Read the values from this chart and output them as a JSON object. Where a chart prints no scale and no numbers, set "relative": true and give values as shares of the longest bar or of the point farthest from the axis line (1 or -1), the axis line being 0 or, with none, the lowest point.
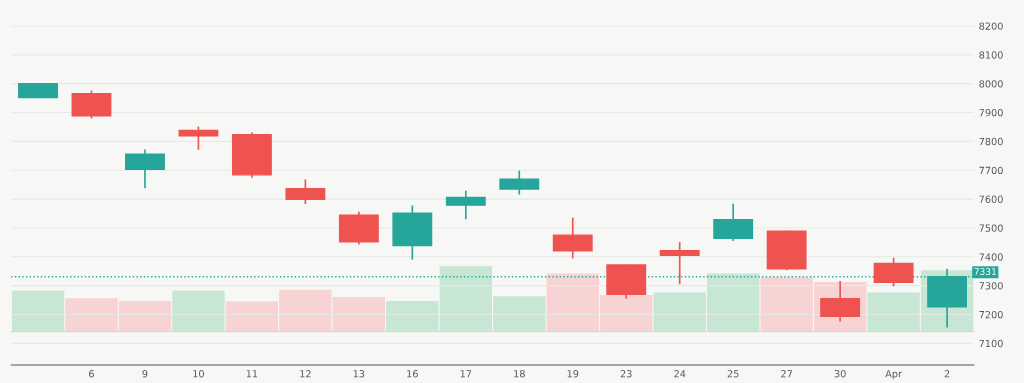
{
  "chart_data": [
    {
      "type": "candlestick",
      "categories": [
        null,
        "6",
        "9",
        "10",
        "11",
        "12",
        "13",
        "16",
        "17",
        "18",
        "19",
        "23",
        "24",
        "25",
        "27",
        "30",
        "Apr",
        "2"
      ],
      "ohlc": [
        [
          7952,
          8000,
          7952,
          8000
        ],
        [
          7965,
          7976,
          7879,
          7889
        ],
        [
          7703,
          7772,
          7638,
          7756
        ],
        [
          7838,
          7852,
          7771,
          7819
        ],
        [
          7823,
          7831,
          7674,
          7684
        ],
        [
          7636,
          7668,
          7583,
          7599
        ],
        [
          7544,
          7556,
          7443,
          7452
        ],
        [
          7439,
          7578,
          7390,
          7551
        ],
        [
          7579,
          7629,
          7530,
          7606
        ],
        [
          7635,
          7699,
          7616,
          7669
        ],
        [
          7475,
          7536,
          7394,
          7421
        ],
        [
          7372,
          7372,
          7255,
          7270
        ],
        [
          7421,
          7451,
          7305,
          7405
        ],
        [
          7464,
          7584,
          7455,
          7529
        ],
        [
          7489,
          7490,
          7353,
          7358
        ],
        [
          7255,
          7316,
          7176,
          7194
        ],
        [
          7377,
          7397,
          7298,
          7312
        ],
        [
          7227,
          7359,
          7155,
          7331
        ]
      ],
      "colors": [
        "#26a69a",
        "#ef5350",
        "#26a69a",
        "#ef5350",
        "#ef5350",
        "#ef5350",
        "#ef5350",
        "#26a69a",
        "#26a69a",
        "#26a69a",
        "#ef5350",
        "#ef5350",
        "#ef5350",
        "#26a69a",
        "#ef5350",
        "#ef5350",
        "#ef5350",
        "#26a69a"
      ],
      "ylim": [
        7025,
        8290
      ],
      "yticks": [
        7100,
        7200,
        7300,
        7400,
        7500,
        7600,
        7700,
        7800,
        7900,
        8000,
        8100,
        8200
      ],
      "ref_lines": [
        {
          "axis": "y",
          "value": 7331,
          "label": "7331",
          "color": "#26a69a",
          "line_style": "dotted"
        }
      ],
      "grid": "y"
    },
    {
      "type": "bar",
      "relative": true,
      "categories": [
        null,
        null,
        null,
        null,
        null,
        null,
        null,
        null,
        null,
        null,
        null,
        null,
        null,
        null,
        null,
        null,
        null,
        null
      ],
      "values": [
        0.63,
        0.51,
        0.47,
        0.63,
        0.46,
        0.64,
        0.53,
        0.47,
        1,
        0.54,
        0.89,
        0.56,
        0.6,
        0.89,
        0.83,
        0.76,
        0.6,
        0.94
      ],
      "colors": [
        "#c8e6d4",
        "#f8d3d3",
        "#f8d3d3",
        "#c8e6d4",
        "#f8d3d3",
        "#f8d3d3",
        "#f8d3d3",
        "#c8e6d4",
        "#c8e6d4",
        "#c8e6d4",
        "#f8d3d3",
        "#f8d3d3",
        "#c8e6d4",
        "#c8e6d4",
        "#f8d3d3",
        "#f8d3d3",
        "#c8e6d4",
        "#c8e6d4"
      ]
    }
  ]
}
